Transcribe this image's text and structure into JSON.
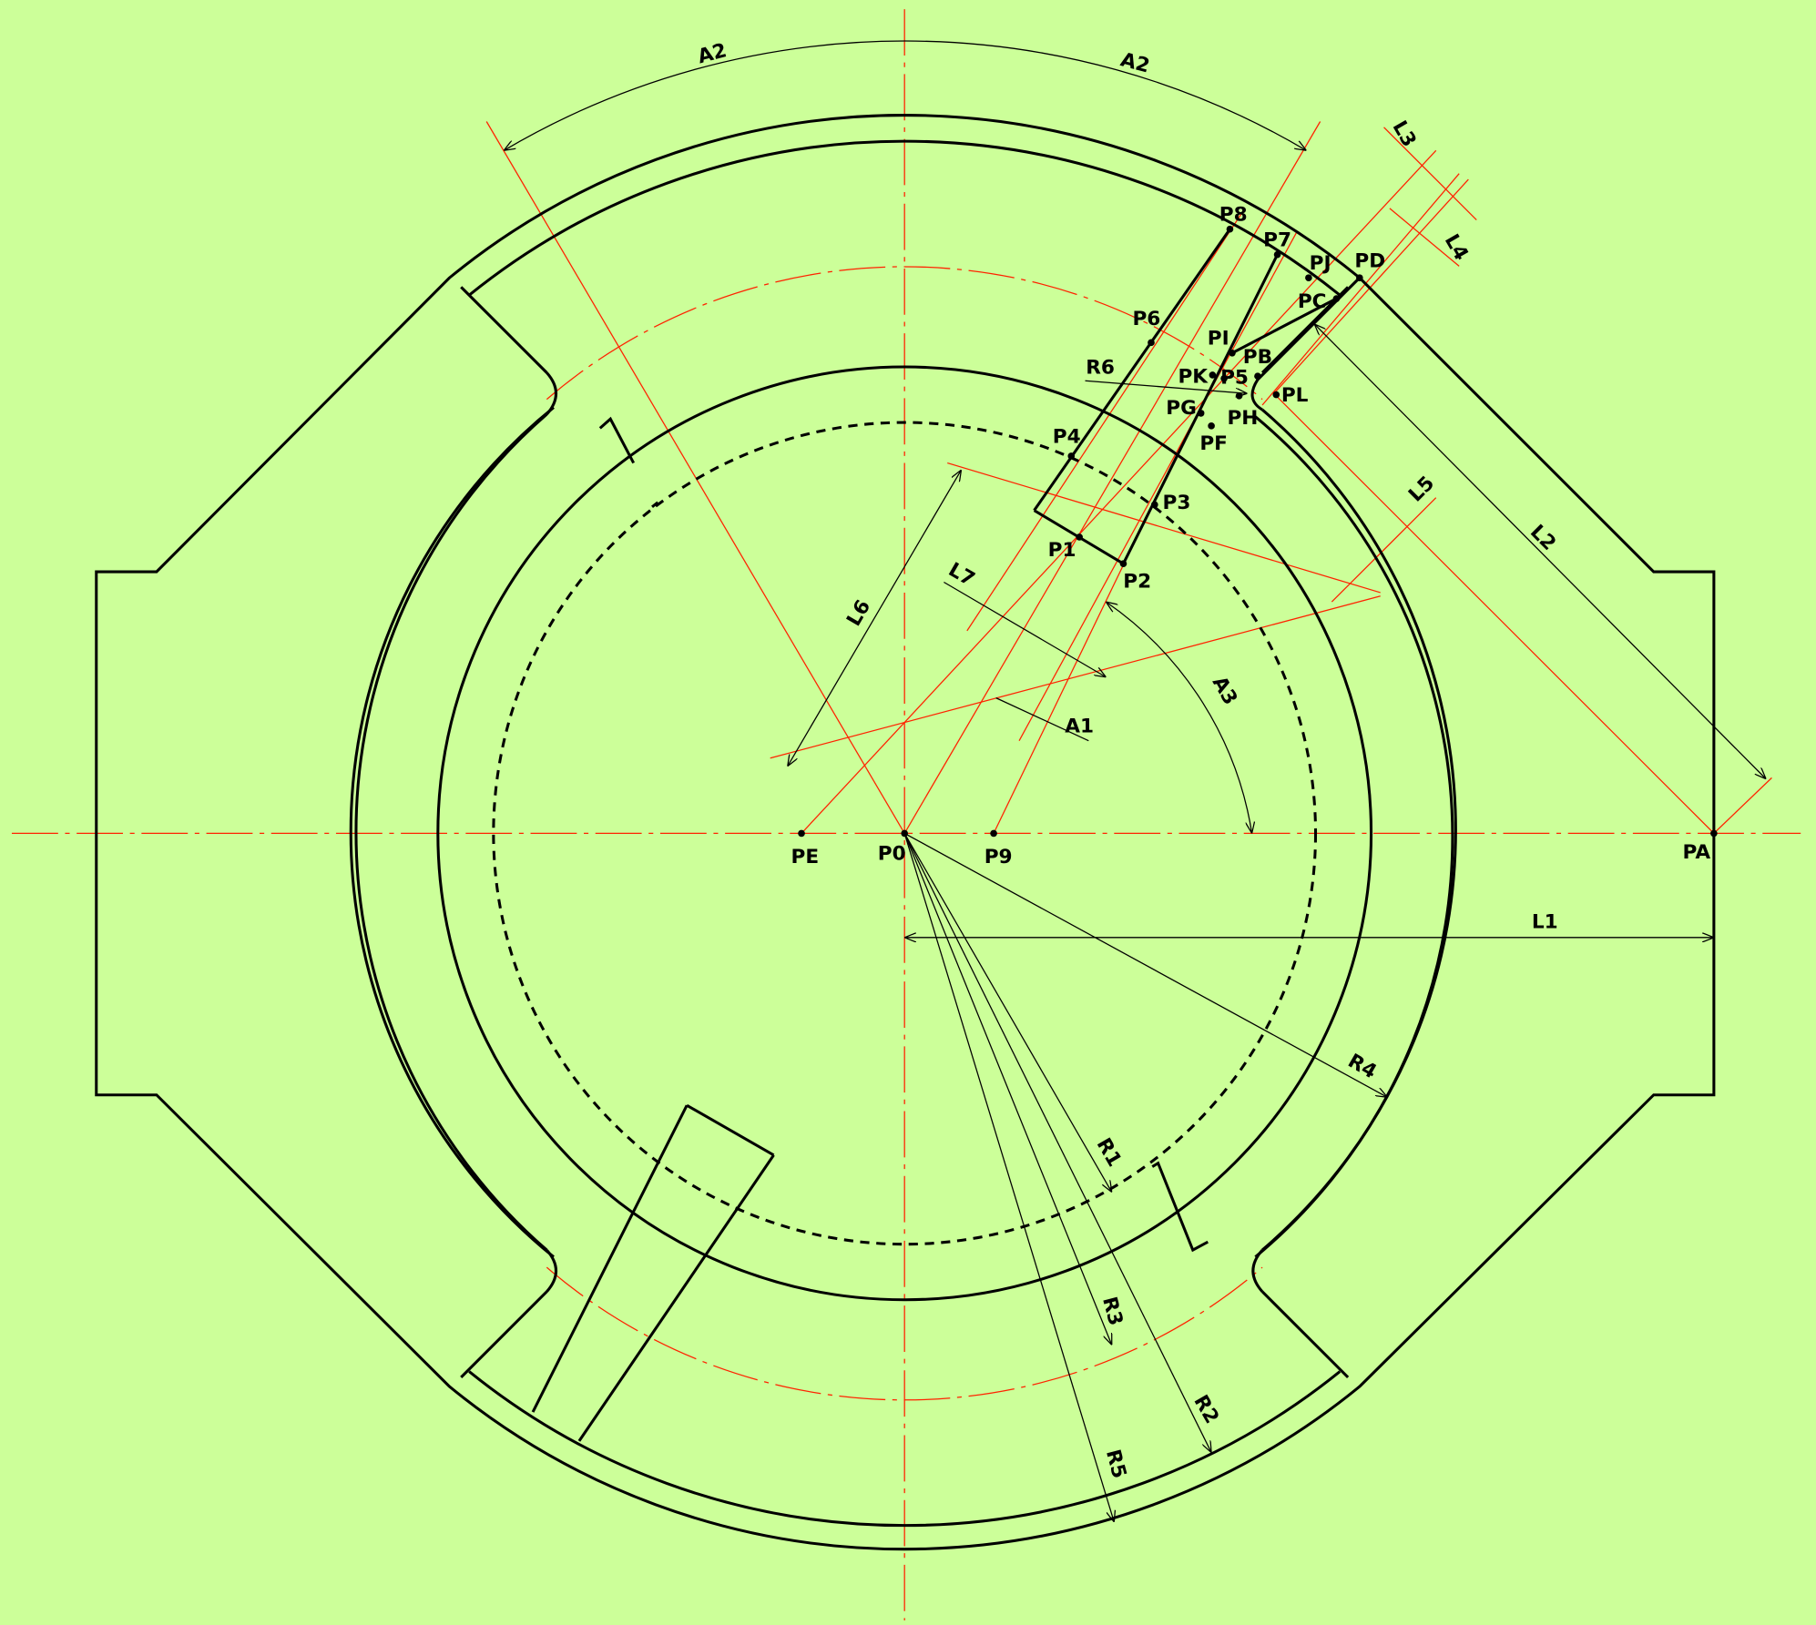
{
  "points": [
    "P0",
    "PE",
    "P9",
    "PA",
    "P1",
    "P2",
    "P3",
    "P4",
    "P6",
    "P8",
    "P7",
    "PJ",
    "PD",
    "PC",
    "PI",
    "PB",
    "PK",
    "P5",
    "PL",
    "PG",
    "PH",
    "PF"
  ],
  "dimensions": [
    "A2",
    "A2",
    "L3",
    "L4",
    "L5",
    "L2",
    "L1",
    "L6",
    "L7",
    "A1",
    "A3",
    "R6",
    "R4",
    "R1",
    "R3",
    "R2",
    "R5"
  ]
}
